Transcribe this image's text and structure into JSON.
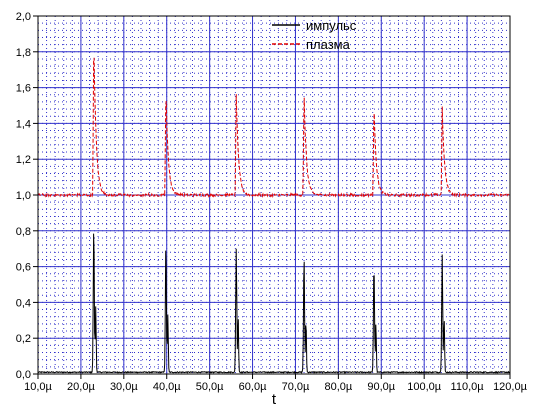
{
  "chart_data": {
    "type": "line",
    "xlabel": "t",
    "ylabel": "",
    "xlim": [
      10,
      120
    ],
    "ylim": [
      0,
      2.0
    ],
    "grid": true,
    "legend_position": "top-center",
    "x_tick_labels": [
      "10,0µ",
      "20,0µ",
      "30,0µ",
      "40,0µ",
      "50,0µ",
      "60,0µ",
      "70,0µ",
      "80,0µ",
      "90,0µ",
      "100,0µ",
      "110,0µ",
      "120,0µ"
    ],
    "y_tick_labels": [
      "0,0",
      "0,2",
      "0,4",
      "0,6",
      "0,8",
      "1,0",
      "1,2",
      "1,4",
      "1,6",
      "1,8",
      "2,0"
    ],
    "pulse_times": [
      23.0,
      39.8,
      56.2,
      72.0,
      88.3,
      104.2
    ],
    "series": [
      {
        "name": "импульс",
        "color": "#000000",
        "line_style": "solid",
        "baseline": 0.01,
        "peaks": [
          0.83,
          0.73,
          0.7,
          0.66,
          0.62,
          0.67
        ]
      },
      {
        "name": "плазма",
        "color": "#e00000",
        "line_style": "dashed",
        "baseline": 1.0,
        "peaks": [
          1.88,
          1.6,
          1.56,
          1.58,
          1.5,
          1.49
        ]
      }
    ]
  },
  "colors": {
    "major_grid": "#3333cc",
    "minor_grid": "#3333cc",
    "frame": "#000000"
  }
}
